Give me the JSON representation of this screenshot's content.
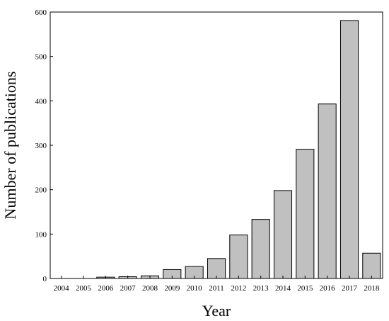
{
  "chart_data": {
    "type": "bar",
    "title": "",
    "xlabel": "Year",
    "ylabel": "Number of publications",
    "categories": [
      "2004",
      "2005",
      "2006",
      "2007",
      "2008",
      "2009",
      "2010",
      "2011",
      "2012",
      "2013",
      "2014",
      "2015",
      "2016",
      "2017",
      "2018"
    ],
    "values": [
      0,
      0,
      3,
      4,
      6,
      20,
      27,
      45,
      98,
      133,
      198,
      291,
      393,
      581,
      57
    ],
    "ylim": [
      0,
      600
    ],
    "yticks": [
      0,
      100,
      200,
      300,
      400,
      500,
      600
    ],
    "grid": false,
    "legend": "none",
    "bar_color": "#c0c0c0",
    "bar_edge_color": "#000000"
  }
}
